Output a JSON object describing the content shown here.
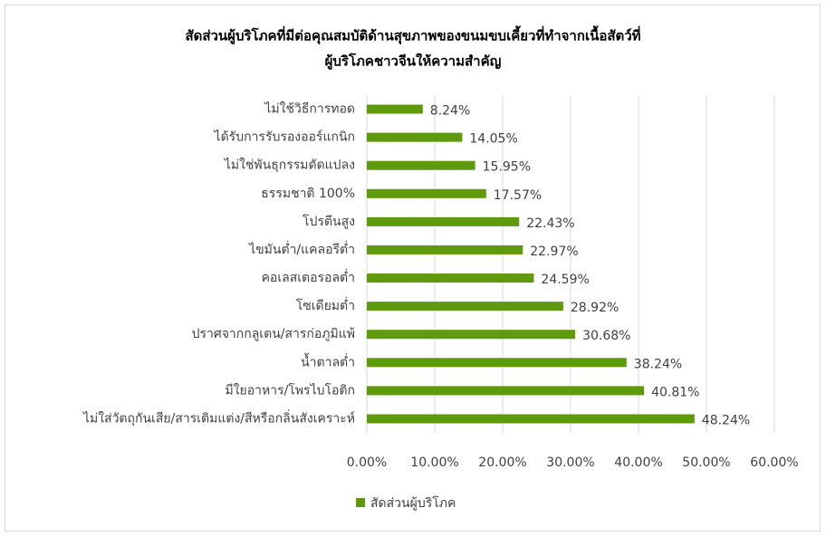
{
  "chart_data": {
    "type": "barh",
    "title": [
      "สัดส่วนผู้บริโภคที่มีต่อคุณสมบัติด้านสุขภาพของขนมขบเคี้ยวที่ทำจากเนื้อสัตว์ที่",
      "ผู้บริโภคชาวจีนให้ความสำคัญ"
    ],
    "categories": [
      "ไม่ใช้วิธีการทอด",
      "ได้รับการรับรองออร์แกนิก",
      "ไม่ใช่พันธุกรรมดัดแปลง",
      "ธรรมชาติ 100%",
      "โปรตีนสูง",
      "ไขมันต่ำ/แคลอรีต่ำ",
      "คอเลสเตอรอลต่ำ",
      "โซเดียมต่ำ",
      "ปราศจากกลูเตน/สารก่อภูมิแพ้",
      "น้ำตาลต่ำ",
      "มีใยอาหาร/โพรไบโอติก",
      "ไม่ใส่วัตถุกันเสีย/สารเติมแต่ง/สีหรือกลิ่นสังเคราะห์"
    ],
    "series": [
      {
        "name": "สัดส่วนผู้บริโภค",
        "color": "#5f9a0c",
        "values": [
          8.24,
          14.05,
          15.95,
          17.57,
          22.43,
          22.97,
          24.59,
          28.92,
          30.68,
          38.24,
          40.81,
          48.24
        ],
        "value_labels": [
          "8.24%",
          "14.05%",
          "15.95%",
          "17.57%",
          "22.43%",
          "22.97%",
          "24.59%",
          "28.92%",
          "30.68%",
          "38.24%",
          "40.81%",
          "48.24%"
        ]
      }
    ],
    "xlim": [
      0,
      60
    ],
    "xticks": [
      {
        "value": 0,
        "label": "0.00%"
      },
      {
        "value": 10,
        "label": "10.00%"
      },
      {
        "value": 20,
        "label": "20.00%"
      },
      {
        "value": 30,
        "label": "30.00%"
      },
      {
        "value": 40,
        "label": "40.00%"
      },
      {
        "value": 50,
        "label": "50.00%"
      },
      {
        "value": 60,
        "label": "60.00%"
      }
    ],
    "grid": true,
    "legend": "bottom"
  }
}
